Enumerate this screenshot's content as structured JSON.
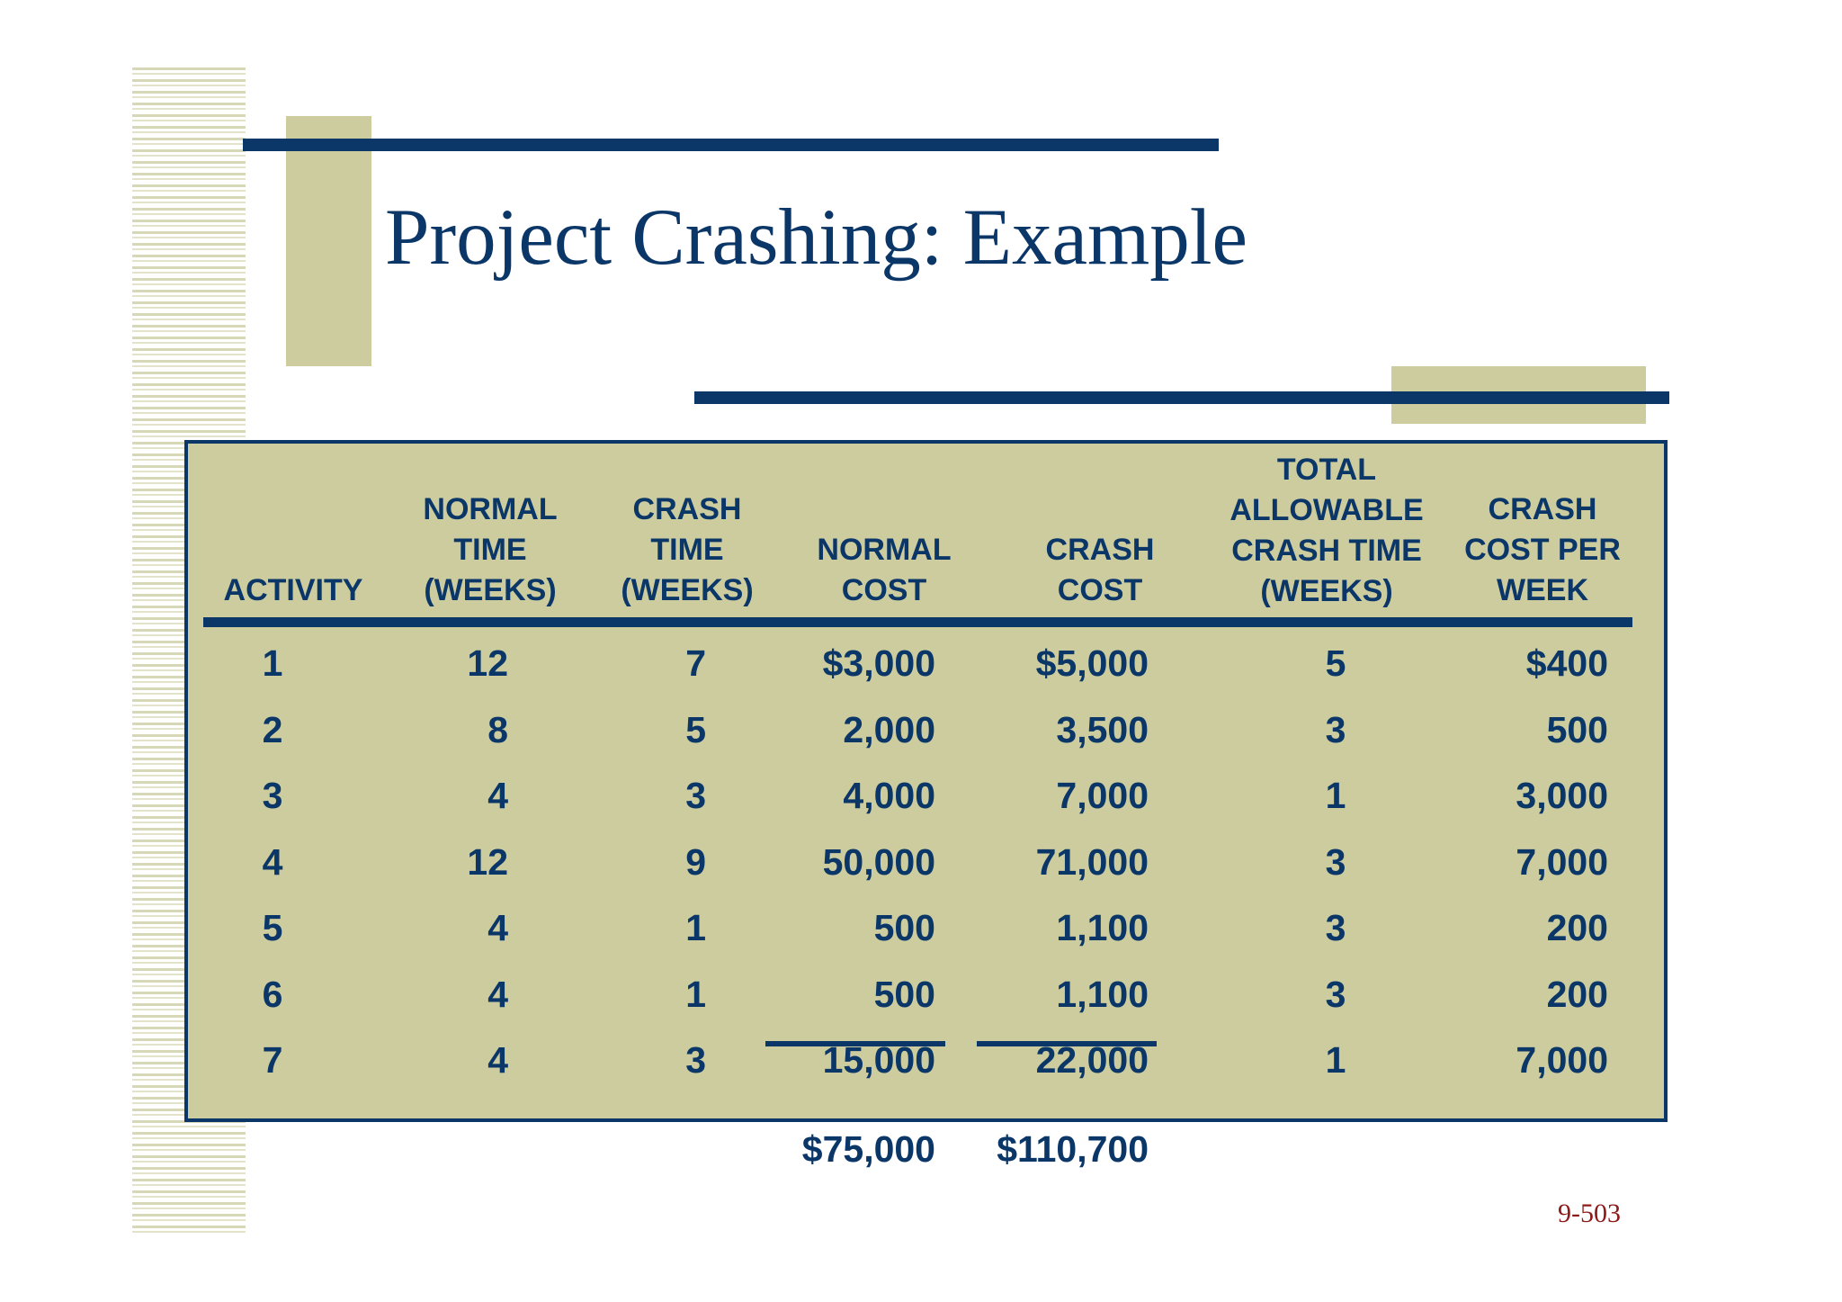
{
  "slide": {
    "title": "Project Crashing: Example",
    "page_number": "9-503"
  },
  "table": {
    "headers": [
      [
        "ACTIVITY"
      ],
      [
        "NORMAL",
        "TIME",
        "(WEEKS)"
      ],
      [
        "CRASH",
        "TIME",
        "(WEEKS)"
      ],
      [
        "NORMAL",
        "COST"
      ],
      [
        "CRASH",
        "COST"
      ],
      [
        "TOTAL",
        "ALLOWABLE",
        "CRASH TIME",
        "(WEEKS)"
      ],
      [
        "CRASH",
        "COST PER",
        "WEEK"
      ]
    ],
    "rows": [
      [
        "1",
        "12",
        "7",
        "$3,000",
        "$5,000",
        "5",
        "$400"
      ],
      [
        "2",
        "8",
        "5",
        "2,000",
        "3,500",
        "3",
        "500"
      ],
      [
        "3",
        "4",
        "3",
        "4,000",
        "7,000",
        "1",
        "3,000"
      ],
      [
        "4",
        "12",
        "9",
        "50,000",
        "71,000",
        "3",
        "7,000"
      ],
      [
        "5",
        "4",
        "1",
        "500",
        "1,100",
        "3",
        "200"
      ],
      [
        "6",
        "4",
        "1",
        "500",
        "1,100",
        "3",
        "200"
      ],
      [
        "7",
        "4",
        "3",
        "15,000",
        "22,000",
        "1",
        "7,000"
      ]
    ],
    "totals": {
      "normal_cost": "$75,000",
      "crash_cost": "$110,700"
    }
  },
  "colors": {
    "navy": "#0b3668",
    "tan": "#cccc9f",
    "page_number": "#8b1a1a"
  }
}
